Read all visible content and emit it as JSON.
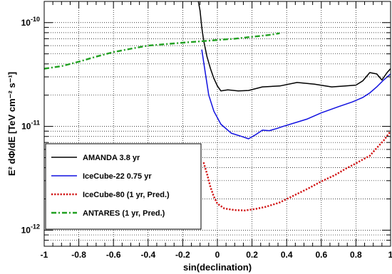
{
  "chart_data": {
    "type": "line",
    "title": "",
    "xlabel": "sin(declination)",
    "ylabel": "E² dΦ/dE [TeV cm⁻² s⁻¹]",
    "xlim": [
      -1,
      1
    ],
    "ylim": [
      7e-13,
      1.6e-10
    ],
    "yscale": "log",
    "grid": true,
    "legend_position": "bottom-left",
    "x_ticks": [
      "-1",
      "-0.8",
      "-0.6",
      "-0.4",
      "-0.2",
      "0",
      "0.2",
      "0.4",
      "0.6",
      "0.8",
      "1"
    ],
    "y_ticks": [
      {
        "value": 1e-12,
        "mantissa": "10",
        "exponent": "-12"
      },
      {
        "value": 1e-11,
        "mantissa": "10",
        "exponent": "-11"
      },
      {
        "value": 1e-10,
        "mantissa": "10",
        "exponent": "-10"
      }
    ],
    "series": [
      {
        "name": "AMANDA  3.8 yr",
        "color": "#000000",
        "style": "solid",
        "points": [
          [
            -0.11,
            1.6e-10
          ],
          [
            -0.1,
            1.3e-10
          ],
          [
            -0.09,
            9e-11
          ],
          [
            -0.08,
            6.8e-11
          ],
          [
            -0.06,
            4.7e-11
          ],
          [
            -0.04,
            3.6e-11
          ],
          [
            -0.02,
            2.9e-11
          ],
          [
            0.0,
            2.45e-11
          ],
          [
            0.02,
            2.2e-11
          ],
          [
            0.06,
            2.25e-11
          ],
          [
            0.12,
            2.2e-11
          ],
          [
            0.18,
            2.22e-11
          ],
          [
            0.26,
            2.4e-11
          ],
          [
            0.36,
            2.45e-11
          ],
          [
            0.46,
            2.65e-11
          ],
          [
            0.56,
            2.55e-11
          ],
          [
            0.66,
            2.4e-11
          ],
          [
            0.74,
            2.45e-11
          ],
          [
            0.8,
            2.5e-11
          ],
          [
            0.84,
            2.75e-11
          ],
          [
            0.88,
            3.3e-11
          ],
          [
            0.92,
            3.2e-11
          ],
          [
            0.95,
            2.8e-11
          ],
          [
            0.98,
            3.3e-11
          ],
          [
            1.0,
            3.6e-11
          ]
        ]
      },
      {
        "name": "IceCube-22   0.75 yr",
        "color": "#1010e0",
        "style": "solid",
        "points": [
          [
            -0.09,
            5.5e-11
          ],
          [
            -0.07,
            3.3e-11
          ],
          [
            -0.05,
            2e-11
          ],
          [
            -0.02,
            1.4e-11
          ],
          [
            0.02,
            1.05e-11
          ],
          [
            0.08,
            8.6e-12
          ],
          [
            0.14,
            8e-12
          ],
          [
            0.18,
            7.6e-12
          ],
          [
            0.22,
            8.3e-12
          ],
          [
            0.26,
            9.2e-12
          ],
          [
            0.3,
            9.1e-12
          ],
          [
            0.34,
            9.5e-12
          ],
          [
            0.38,
            1e-11
          ],
          [
            0.46,
            1.1e-11
          ],
          [
            0.52,
            1.18e-11
          ],
          [
            0.6,
            1.35e-11
          ],
          [
            0.7,
            1.55e-11
          ],
          [
            0.78,
            1.72e-11
          ],
          [
            0.84,
            1.9e-11
          ],
          [
            0.88,
            2.1e-11
          ],
          [
            0.92,
            2.4e-11
          ],
          [
            0.96,
            2.8e-11
          ],
          [
            1.0,
            3.2e-11
          ]
        ]
      },
      {
        "name": "IceCube-80 (1 yr, Pred.)",
        "color": "#d01010",
        "style": "dotted",
        "points": [
          [
            -0.08,
            4.5e-12
          ],
          [
            -0.06,
            3.5e-12
          ],
          [
            -0.04,
            2.6e-12
          ],
          [
            -0.02,
            2.1e-12
          ],
          [
            0.0,
            1.8e-12
          ],
          [
            0.04,
            1.62e-12
          ],
          [
            0.1,
            1.56e-12
          ],
          [
            0.16,
            1.55e-12
          ],
          [
            0.22,
            1.6e-12
          ],
          [
            0.28,
            1.68e-12
          ],
          [
            0.36,
            1.85e-12
          ],
          [
            0.44,
            2.15e-12
          ],
          [
            0.52,
            2.5e-12
          ],
          [
            0.6,
            2.95e-12
          ],
          [
            0.68,
            3.4e-12
          ],
          [
            0.74,
            3.9e-12
          ],
          [
            0.8,
            4.4e-12
          ],
          [
            0.84,
            4.8e-12
          ],
          [
            0.88,
            5.2e-12
          ],
          [
            0.92,
            6.2e-12
          ],
          [
            0.96,
            7.3e-12
          ],
          [
            1.0,
            9e-12
          ]
        ]
      },
      {
        "name": "ANTARES (1 yr, Pred.)",
        "color": "#20a020",
        "style": "dashdot",
        "points": [
          [
            -1.0,
            3.6e-11
          ],
          [
            -0.9,
            3.8e-11
          ],
          [
            -0.8,
            4.2e-11
          ],
          [
            -0.7,
            4.7e-11
          ],
          [
            -0.6,
            5.2e-11
          ],
          [
            -0.5,
            5.6e-11
          ],
          [
            -0.4,
            6e-11
          ],
          [
            -0.3,
            6.2e-11
          ],
          [
            -0.2,
            6.4e-11
          ],
          [
            -0.1,
            6.6e-11
          ],
          [
            0.0,
            6.8e-11
          ],
          [
            0.1,
            7e-11
          ],
          [
            0.2,
            7.3e-11
          ],
          [
            0.3,
            7.6e-11
          ],
          [
            0.36,
            7.9e-11
          ]
        ]
      }
    ]
  }
}
